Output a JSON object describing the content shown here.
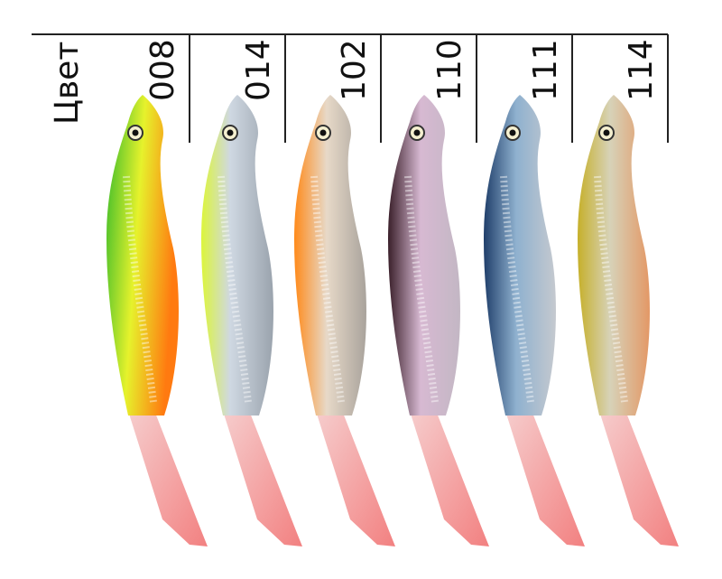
{
  "header": {
    "label": "Цвет"
  },
  "colors": [
    {
      "code": "008"
    },
    {
      "code": "014"
    },
    {
      "code": "102"
    },
    {
      "code": "110"
    },
    {
      "code": "111"
    },
    {
      "code": "114"
    }
  ]
}
